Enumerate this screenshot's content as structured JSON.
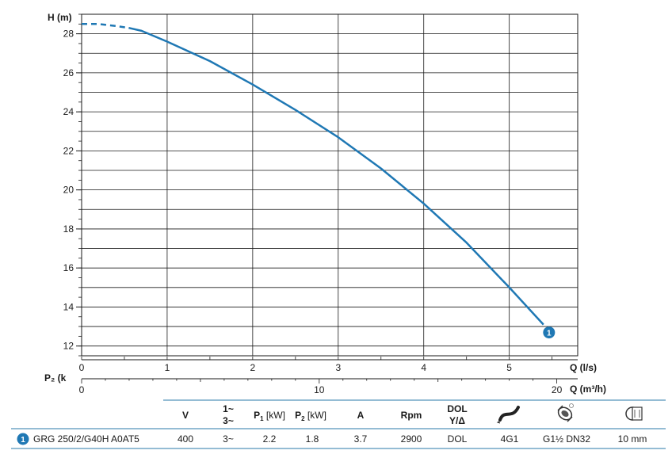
{
  "chart_data": {
    "type": "line",
    "ylabel": "H (m)",
    "xlabel": "Q (l/s)",
    "xlabel2": "Q (m³/h)",
    "p2_label": "P₂ (k",
    "xlim": [
      0,
      5.8
    ],
    "ylim": [
      11.5,
      29
    ],
    "x_ticks": [
      "0",
      "1",
      "2",
      "3",
      "4",
      "5"
    ],
    "y_ticks": [
      "12",
      "14",
      "16",
      "18",
      "20",
      "22",
      "24",
      "26",
      "28"
    ],
    "x2_ticks": [
      "0",
      "10",
      "20"
    ],
    "grid": true,
    "series": [
      {
        "marker_label": "1",
        "color": "#1f78b4",
        "dashed_until_x": 0.55,
        "x": [
          0,
          0.2,
          0.4,
          0.55,
          0.7,
          1.0,
          1.5,
          2.0,
          2.5,
          3.0,
          3.5,
          4.0,
          4.5,
          5.0,
          5.4
        ],
        "y": [
          28.5,
          28.5,
          28.4,
          28.3,
          28.15,
          27.6,
          26.6,
          25.4,
          24.1,
          22.7,
          21.1,
          19.3,
          17.3,
          15.0,
          13.1
        ]
      }
    ]
  },
  "table": {
    "headers": {
      "v": "V",
      "phase_top": "1~",
      "phase_bottom": "3~",
      "p1": "[kW]",
      "p2": "[kW]",
      "a": "A",
      "rpm": "Rpm",
      "dol_top": "DOL",
      "dol_bottom": "Y/Δ"
    },
    "row": {
      "badge": "1",
      "model": "GRG 250/2/G40H A0AT5",
      "v": "400",
      "phase": "3~",
      "p1": "2.2",
      "p2": "1.8",
      "a": "3.7",
      "rpm": "2900",
      "dol": "DOL",
      "cable": "4G1",
      "outlet": "G1½ DN32",
      "passage": "10 mm"
    },
    "icons": [
      "cable-icon",
      "outlet-icon",
      "solid-passage-icon"
    ]
  }
}
